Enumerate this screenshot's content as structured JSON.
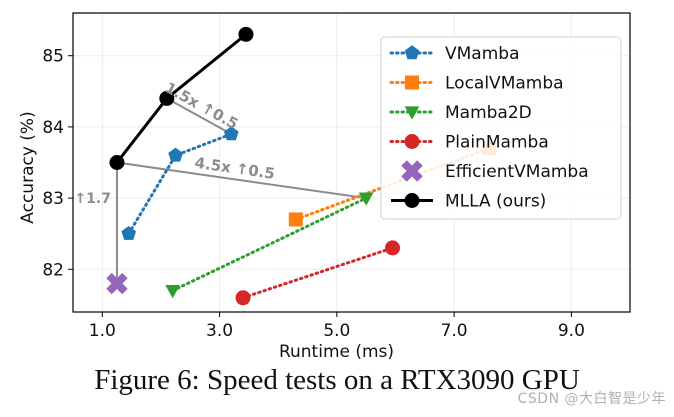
{
  "chart_data": {
    "type": "scatter",
    "xlabel": "Runtime (ms)",
    "ylabel": "Accuracy (%)",
    "xlim": [
      0.5,
      10.0
    ],
    "ylim": [
      81.4,
      85.6
    ],
    "xticks": [
      1.0,
      3.0,
      5.0,
      7.0,
      9.0
    ],
    "xtick_labels": [
      "1.0",
      "3.0",
      "5.0",
      "7.0",
      "9.0"
    ],
    "yticks": [
      82,
      83,
      84,
      85
    ],
    "ytick_labels": [
      "82",
      "83",
      "84",
      "85"
    ],
    "grid": true,
    "legend_position": "top-right",
    "series": [
      {
        "name": "VMamba",
        "color": "#1f77b4",
        "marker": "pentagon",
        "line": "dotted",
        "points": [
          [
            1.45,
            82.5
          ],
          [
            2.25,
            83.6
          ],
          [
            3.2,
            83.9
          ]
        ]
      },
      {
        "name": "LocalVMamba",
        "color": "#ff7f0e",
        "marker": "square",
        "line": "dotted",
        "points": [
          [
            4.3,
            82.7
          ],
          [
            7.6,
            83.7
          ]
        ]
      },
      {
        "name": "Mamba2D",
        "color": "#2ca02c",
        "marker": "triangle-down",
        "line": "dotted",
        "points": [
          [
            2.2,
            81.7
          ],
          [
            5.5,
            83.0
          ]
        ]
      },
      {
        "name": "PlainMamba",
        "color": "#d62728",
        "marker": "circle",
        "line": "dotted",
        "points": [
          [
            3.4,
            81.6
          ],
          [
            5.95,
            82.3
          ]
        ]
      },
      {
        "name": "EfficientVMamba",
        "color": "#9467bd",
        "marker": "x",
        "line": "none",
        "points": [
          [
            1.25,
            81.8
          ]
        ]
      },
      {
        "name": "MLLA (ours)",
        "color": "#000000",
        "marker": "circle",
        "line": "solid",
        "points": [
          [
            1.25,
            83.5
          ],
          [
            2.1,
            84.4
          ],
          [
            3.45,
            85.3
          ]
        ]
      }
    ],
    "comparisons": [
      {
        "from": [
          1.25,
          81.8
        ],
        "to": [
          1.25,
          83.5
        ],
        "label": "↑1.7"
      },
      {
        "from": [
          1.25,
          83.5
        ],
        "to": [
          5.5,
          83.0
        ],
        "label": "4.5x ↑0.5"
      },
      {
        "from": [
          2.1,
          84.4
        ],
        "to": [
          3.2,
          83.9
        ],
        "label": "1.5x ↑0.5"
      }
    ]
  },
  "caption": "Figure 6: Speed tests on a RTX3090 GPU",
  "watermark": "CSDN @大白智是少年"
}
